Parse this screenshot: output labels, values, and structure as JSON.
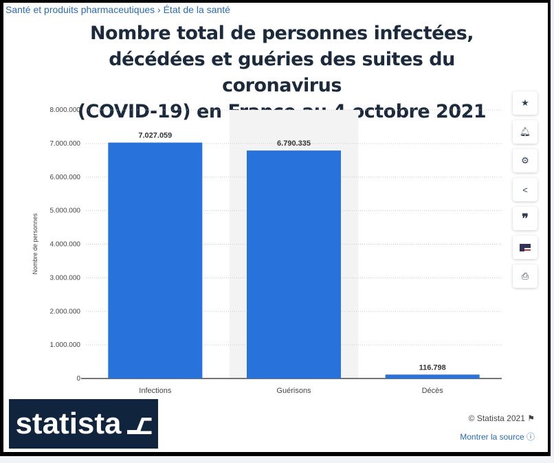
{
  "breadcrumb": {
    "item1": "Santé et produits pharmaceutiques",
    "sep": "›",
    "item2": "État de la santé"
  },
  "side_icons": [
    "star-icon",
    "bell-icon",
    "gear-icon",
    "share-icon",
    "quote-icon",
    "flag-us-icon",
    "print-icon"
  ],
  "footer": {
    "logo": "statista",
    "copyright": "© Statista 2021",
    "source": "Montrer la source"
  },
  "colors": {
    "bar": "#2872dc",
    "highlight": "#f3f3f3",
    "title": "#1b2a3c"
  },
  "chart_data": {
    "type": "bar",
    "title": "Nombre total de personnes infectées, décédées et guéries des suites du coronavirus (COVID-19) en France au 4 octobre 2021",
    "title_lines": [
      "Nombre total de personnes infectées,",
      "décédées et guéries des suites du coronavirus",
      "(COVID-19) en France au 4 octobre 2021"
    ],
    "categories": [
      "Infections",
      "Guérisons",
      "Décès"
    ],
    "values": [
      7027059,
      6790335,
      116798
    ],
    "value_labels": [
      "7.027.059",
      "6.790.335",
      "116.798"
    ],
    "ylabel": "Nombre de personnes",
    "xlabel": "",
    "ylim": [
      0,
      8000000
    ],
    "yticks": [
      "0",
      "1.000.000",
      "2.000.000",
      "3.000.000",
      "4.000.000",
      "5.000.000",
      "6.000.000",
      "7.000.000",
      "8.000.000"
    ],
    "grid": true,
    "highlighted_category": "Guérisons"
  }
}
